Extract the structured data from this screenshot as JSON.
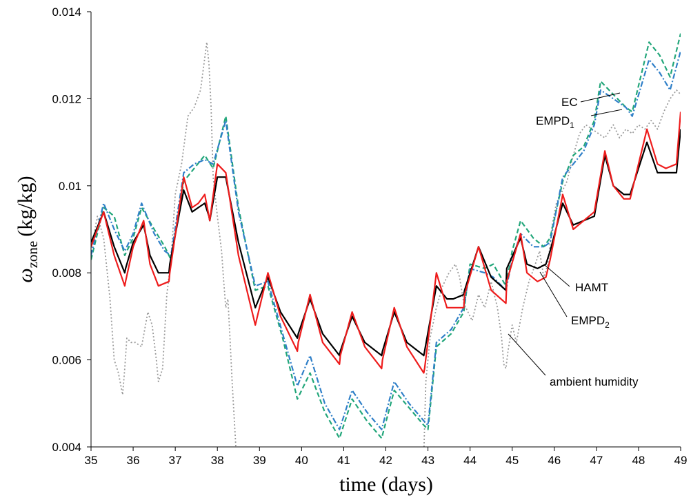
{
  "chart_data": {
    "type": "line",
    "xlabel": "time (days)",
    "ylabel_symbol": "ω",
    "ylabel_subscript": "zone",
    "ylabel_units": "(kg/kg)",
    "xlim": [
      35,
      49
    ],
    "ylim": [
      0.004,
      0.014
    ],
    "xticks": [
      "35",
      "36",
      "37",
      "38",
      "39",
      "40",
      "41",
      "42",
      "43",
      "44",
      "45",
      "46",
      "47",
      "48",
      "49"
    ],
    "yticks": [
      "0.004",
      "0.006",
      "0.008",
      "0.01",
      "0.012",
      "0.014"
    ],
    "grid": false,
    "colors": {
      "HAMT": "#000000",
      "EMPD2": "#ee1c1c",
      "EMPD1": "#2f7fc8",
      "EC": "#22a67a",
      "ambient": "#9a9a9a"
    },
    "annotations": [
      {
        "text": "EC",
        "series": "EC"
      },
      {
        "text": "EMPD",
        "sub": "1",
        "series": "EMPD1"
      },
      {
        "text": "HAMT",
        "series": "HAMT"
      },
      {
        "text": "EMPD",
        "sub": "2",
        "series": "EMPD2"
      },
      {
        "text": "ambient humidity",
        "series": "ambient"
      }
    ],
    "series": [
      {
        "id": "EC",
        "x": [
          35.0,
          35.3,
          35.55,
          35.8,
          36.0,
          36.2,
          36.5,
          36.75,
          36.9,
          37.2,
          37.45,
          37.7,
          37.9,
          38.2,
          38.5,
          38.9,
          39.2,
          39.55,
          39.9,
          40.2,
          40.55,
          40.9,
          41.2,
          41.55,
          41.9,
          42.2,
          42.55,
          42.9,
          43.0,
          43.2,
          43.55,
          43.85,
          44.0,
          44.35,
          44.55,
          44.85,
          45.0,
          45.2,
          45.5,
          45.75,
          45.9,
          46.2,
          46.45,
          46.7,
          46.95,
          47.1,
          47.4,
          47.7,
          47.85,
          48.25,
          48.5,
          48.75,
          49.0
        ],
        "y": [
          0.0083,
          0.0095,
          0.0093,
          0.0084,
          0.0088,
          0.0095,
          0.009,
          0.0086,
          0.0083,
          0.0101,
          0.0104,
          0.0107,
          0.0104,
          0.0116,
          0.0095,
          0.0076,
          0.0077,
          0.0065,
          0.0051,
          0.0057,
          0.0048,
          0.0042,
          0.0051,
          0.0046,
          0.0042,
          0.0053,
          0.0049,
          0.0045,
          0.0044,
          0.0063,
          0.0066,
          0.0071,
          0.0082,
          0.0081,
          0.0082,
          0.0077,
          0.0085,
          0.0092,
          0.0088,
          0.0086,
          0.0088,
          0.0101,
          0.0107,
          0.0109,
          0.0115,
          0.0124,
          0.0121,
          0.0118,
          0.0117,
          0.0133,
          0.013,
          0.0125,
          0.0135
        ]
      },
      {
        "id": "EMPD1",
        "x": [
          35.0,
          35.3,
          35.55,
          35.8,
          36.0,
          36.2,
          36.5,
          36.75,
          36.9,
          37.2,
          37.45,
          37.7,
          37.9,
          38.2,
          38.5,
          38.9,
          39.2,
          39.55,
          39.9,
          40.2,
          40.55,
          40.9,
          41.2,
          41.55,
          41.9,
          42.2,
          42.55,
          42.9,
          43.0,
          43.2,
          43.55,
          43.85,
          44.0,
          44.35,
          44.55,
          44.85,
          45.0,
          45.2,
          45.5,
          45.75,
          45.9,
          46.2,
          46.45,
          46.7,
          46.95,
          47.1,
          47.4,
          47.7,
          47.85,
          48.25,
          48.5,
          48.75,
          49.0
        ],
        "y": [
          0.0084,
          0.0096,
          0.009,
          0.0085,
          0.0089,
          0.0096,
          0.0089,
          0.0085,
          0.0084,
          0.0103,
          0.0105,
          0.0106,
          0.0105,
          0.0115,
          0.0094,
          0.0077,
          0.0078,
          0.0066,
          0.0054,
          0.0061,
          0.005,
          0.0044,
          0.0053,
          0.0048,
          0.0044,
          0.0055,
          0.005,
          0.0046,
          0.0045,
          0.0064,
          0.0067,
          0.0072,
          0.0081,
          0.008,
          0.0079,
          0.0076,
          0.0083,
          0.0089,
          0.0086,
          0.0086,
          0.0087,
          0.0102,
          0.0105,
          0.0108,
          0.0114,
          0.0122,
          0.012,
          0.0118,
          0.0116,
          0.0129,
          0.0126,
          0.0122,
          0.0131
        ]
      },
      {
        "id": "HAMT",
        "x": [
          35.0,
          35.3,
          35.55,
          35.8,
          35.82,
          36.0,
          36.25,
          36.4,
          36.6,
          36.85,
          36.87,
          37.2,
          37.4,
          37.55,
          37.7,
          37.8,
          37.82,
          38.0,
          38.2,
          38.5,
          38.9,
          39.2,
          39.5,
          39.9,
          39.92,
          40.2,
          40.5,
          40.9,
          40.92,
          41.2,
          41.5,
          41.9,
          41.92,
          42.2,
          42.5,
          42.9,
          42.92,
          43.2,
          43.45,
          43.6,
          43.85,
          43.87,
          44.2,
          44.5,
          44.85,
          44.87,
          45.2,
          45.35,
          45.6,
          45.8,
          45.9,
          46.2,
          46.45,
          46.7,
          46.95,
          47.2,
          47.4,
          47.65,
          47.8,
          48.2,
          48.45,
          48.65,
          48.9,
          49.0
        ],
        "y": [
          0.0087,
          0.0094,
          0.0086,
          0.008,
          0.0081,
          0.0087,
          0.0091,
          0.0084,
          0.008,
          0.008,
          0.0082,
          0.0099,
          0.0094,
          0.0095,
          0.0096,
          0.0093,
          0.0092,
          0.0102,
          0.0102,
          0.0087,
          0.0072,
          0.0079,
          0.0071,
          0.0065,
          0.0066,
          0.0074,
          0.0066,
          0.0061,
          0.0062,
          0.007,
          0.0064,
          0.0061,
          0.0062,
          0.0071,
          0.0064,
          0.0061,
          0.0062,
          0.0077,
          0.0074,
          0.0074,
          0.0075,
          0.0076,
          0.0086,
          0.0079,
          0.0076,
          0.0081,
          0.0088,
          0.0082,
          0.0081,
          0.0082,
          0.0085,
          0.0096,
          0.0091,
          0.0092,
          0.0093,
          0.0107,
          0.01,
          0.0098,
          0.0098,
          0.011,
          0.0103,
          0.0103,
          0.0103,
          0.0113
        ]
      },
      {
        "id": "EMPD2",
        "x": [
          35.0,
          35.3,
          35.55,
          35.8,
          35.82,
          36.0,
          36.25,
          36.4,
          36.6,
          36.85,
          36.87,
          37.2,
          37.4,
          37.55,
          37.7,
          37.8,
          37.82,
          38.0,
          38.2,
          38.5,
          38.9,
          39.2,
          39.5,
          39.9,
          39.92,
          40.2,
          40.5,
          40.9,
          40.92,
          41.2,
          41.5,
          41.9,
          41.92,
          42.2,
          42.5,
          42.9,
          42.92,
          43.2,
          43.45,
          43.6,
          43.85,
          43.87,
          44.2,
          44.5,
          44.85,
          44.87,
          45.2,
          45.35,
          45.6,
          45.8,
          45.9,
          46.2,
          46.45,
          46.7,
          46.95,
          47.2,
          47.4,
          47.65,
          47.8,
          48.2,
          48.45,
          48.65,
          48.9,
          49.0
        ],
        "y": [
          0.0086,
          0.0094,
          0.0084,
          0.0077,
          0.0078,
          0.0086,
          0.0092,
          0.0082,
          0.0077,
          0.0078,
          0.008,
          0.0102,
          0.0095,
          0.0096,
          0.0098,
          0.0093,
          0.0092,
          0.0105,
          0.0103,
          0.0084,
          0.0068,
          0.008,
          0.007,
          0.0062,
          0.0064,
          0.0075,
          0.0064,
          0.0059,
          0.0061,
          0.0071,
          0.0063,
          0.0058,
          0.006,
          0.0072,
          0.0063,
          0.0057,
          0.0058,
          0.008,
          0.0072,
          0.0072,
          0.0072,
          0.0075,
          0.0086,
          0.0076,
          0.0073,
          0.0078,
          0.0089,
          0.008,
          0.0078,
          0.0079,
          0.0083,
          0.0098,
          0.009,
          0.0092,
          0.0094,
          0.0108,
          0.01,
          0.0097,
          0.0097,
          0.0113,
          0.0105,
          0.0104,
          0.0105,
          0.0117
        ]
      },
      {
        "id": "ambient",
        "x": [
          35.0,
          35.15,
          35.3,
          35.45,
          35.55,
          35.65,
          35.75,
          35.8,
          35.85,
          35.95,
          36.05,
          36.2,
          36.35,
          36.45,
          36.55,
          36.6,
          36.7,
          36.8,
          36.9,
          37.0,
          37.15,
          37.3,
          37.45,
          37.6,
          37.75,
          37.8,
          37.85,
          37.9,
          38.0,
          38.1,
          38.15,
          38.2,
          38.25,
          38.3,
          38.35,
          38.45,
          42.9,
          42.95,
          43.05,
          43.2,
          43.35,
          43.5,
          43.65,
          43.75,
          43.85,
          43.95,
          44.05,
          44.2,
          44.35,
          44.5,
          44.65,
          44.75,
          44.8,
          44.85,
          44.9,
          45.0,
          45.1,
          45.25,
          45.4,
          45.55,
          45.65,
          45.75,
          45.85,
          45.95,
          46.05,
          46.15,
          46.3,
          46.45,
          46.6,
          46.75,
          46.9,
          47.05,
          47.2,
          47.4,
          47.55,
          47.7,
          47.85,
          48.0,
          48.15,
          48.3,
          48.45,
          48.6,
          48.75,
          48.9,
          49.0
        ],
        "y": [
          0.0085,
          0.0093,
          0.0088,
          0.0074,
          0.006,
          0.0057,
          0.0052,
          0.0058,
          0.0065,
          0.0064,
          0.0064,
          0.0063,
          0.0071,
          0.0068,
          0.006,
          0.0055,
          0.0058,
          0.0075,
          0.0083,
          0.0098,
          0.0105,
          0.0116,
          0.0118,
          0.0122,
          0.0133,
          0.0128,
          0.0118,
          0.0102,
          0.0093,
          0.0085,
          0.0078,
          0.0072,
          0.0074,
          0.0065,
          0.0055,
          0.0038,
          0.0038,
          0.0055,
          0.0065,
          0.0072,
          0.0077,
          0.008,
          0.0082,
          0.0079,
          0.0073,
          0.0071,
          0.0069,
          0.0075,
          0.0072,
          0.0078,
          0.0072,
          0.0065,
          0.0059,
          0.0058,
          0.0062,
          0.0068,
          0.0064,
          0.0072,
          0.0078,
          0.0082,
          0.0085,
          0.0079,
          0.0082,
          0.0091,
          0.0096,
          0.0098,
          0.0101,
          0.0107,
          0.0112,
          0.0114,
          0.0113,
          0.0112,
          0.0111,
          0.0114,
          0.0111,
          0.0113,
          0.0112,
          0.0114,
          0.0113,
          0.0115,
          0.0113,
          0.0117,
          0.012,
          0.0122,
          0.0121
        ]
      }
    ]
  }
}
